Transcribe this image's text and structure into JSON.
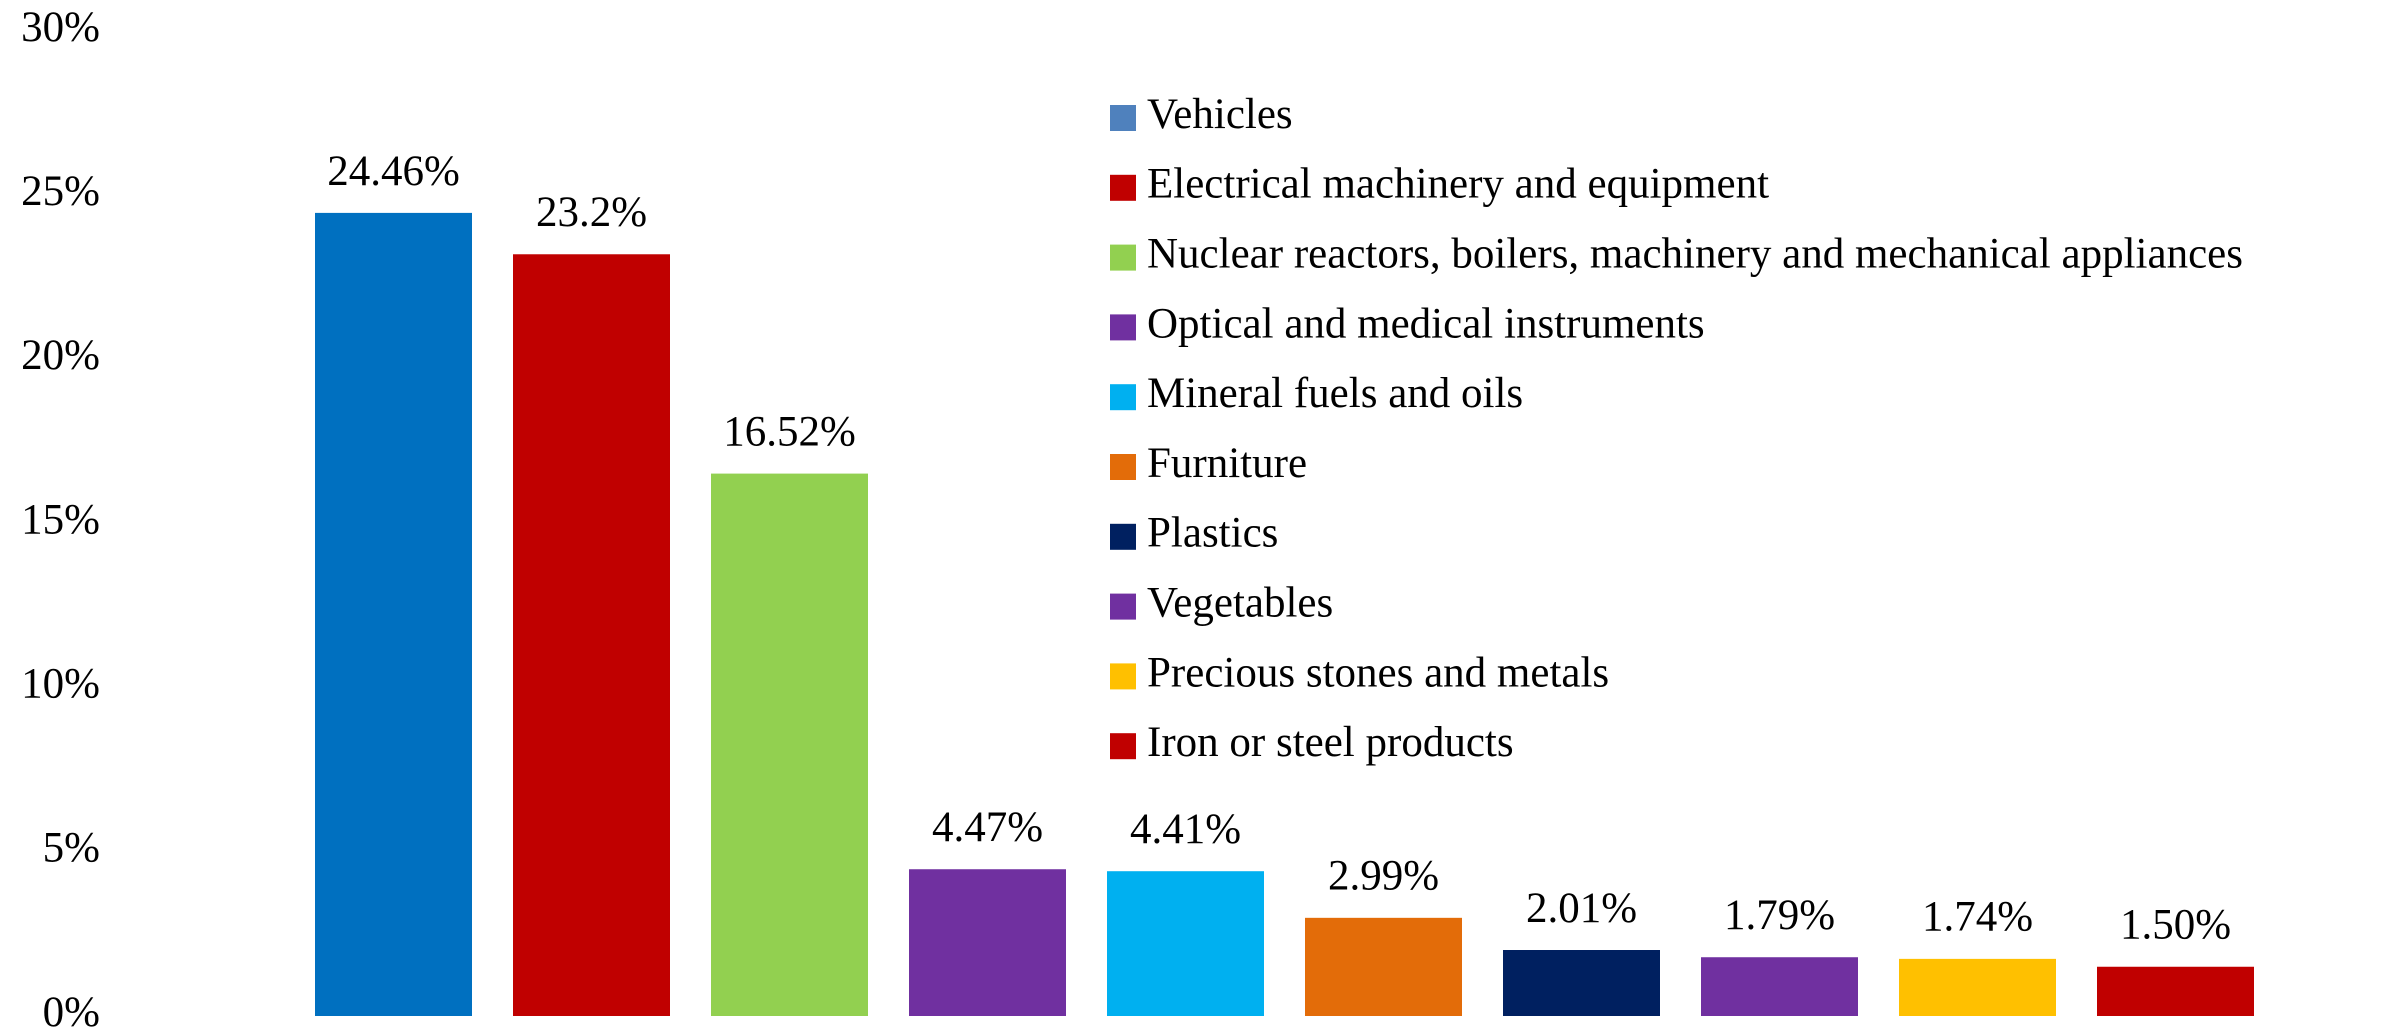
{
  "chart_data": {
    "type": "bar",
    "categories": [
      "Vehicles",
      "Electrical machinery and equipment",
      "Nuclear reactors, boilers, machinery and mechanical appliances",
      "Optical and medical instruments",
      "Mineral fuels and oils",
      "Furniture",
      "Plastics",
      "Vegetables",
      "Precious stones and metals",
      "Iron or steel products"
    ],
    "values": [
      24.46,
      23.2,
      16.52,
      4.47,
      4.41,
      2.99,
      2.01,
      1.79,
      1.74,
      1.5
    ],
    "value_labels": [
      "24.46%",
      "23.2%",
      "16.52%",
      "4.47%",
      "4.41%",
      "2.99%",
      "2.01%",
      "1.79%",
      "1.74%",
      "1.50%"
    ],
    "colors": [
      "#0070c0",
      "#c00000",
      "#92d050",
      "#7030a0",
      "#00b0f0",
      "#e36c09",
      "#002060",
      "#7030a0",
      "#ffc000",
      "#c00000"
    ],
    "legend_colors": [
      "#4f81bd",
      "#c00000",
      "#92d050",
      "#7030a0",
      "#00b0f0",
      "#e36c09",
      "#002060",
      "#7030a0",
      "#ffc000",
      "#c00000"
    ],
    "ylim": [
      0,
      30
    ],
    "yticks": [
      {
        "value": 0,
        "label": "0%"
      },
      {
        "value": 5,
        "label": "5%"
      },
      {
        "value": 10,
        "label": "10%"
      },
      {
        "value": 15,
        "label": "15%"
      },
      {
        "value": 20,
        "label": "20%"
      },
      {
        "value": 25,
        "label": "25%"
      },
      {
        "value": 30,
        "label": "30%"
      }
    ],
    "grid": false
  }
}
